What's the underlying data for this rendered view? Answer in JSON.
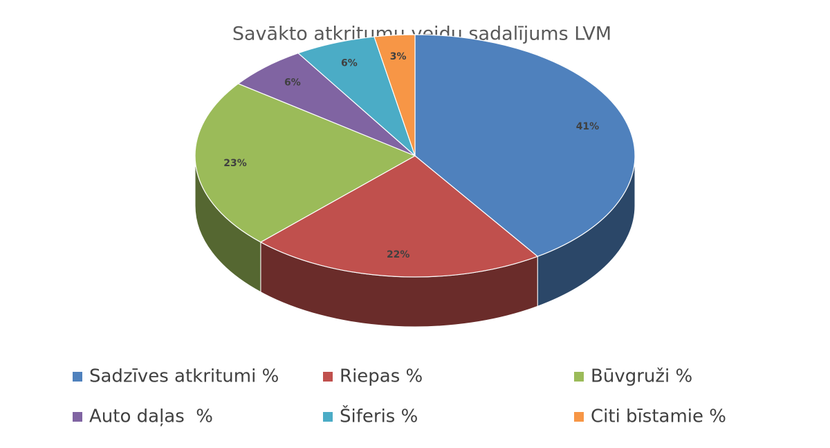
{
  "chart_data": {
    "type": "pie",
    "title": "Savākto atkritumu veidu sadalījums LVM",
    "categories": [
      "Sadzīves atkritumi %",
      "Riepas %",
      "Būvgruži %",
      "Auto daļas  %",
      "Šiferis %",
      "Citi bīstamie %"
    ],
    "values": [
      41,
      22,
      23,
      6,
      6,
      3
    ],
    "value_labels": [
      "41%",
      "22%",
      "23%",
      "6%",
      "6%",
      "3%"
    ],
    "colors": [
      "#4f81bd",
      "#c0504d",
      "#9bbb59",
      "#8064a2",
      "#4bacc6",
      "#f79646"
    ],
    "legend": "bottom"
  }
}
